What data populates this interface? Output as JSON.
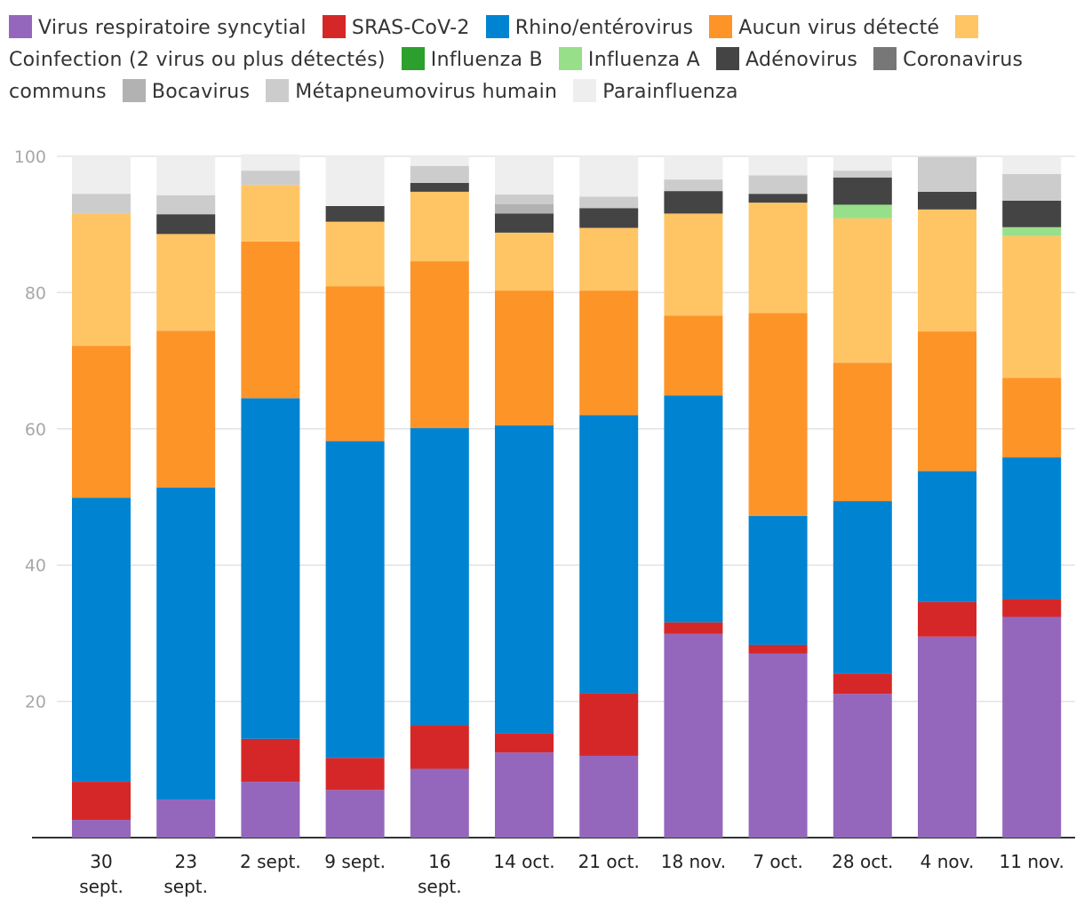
{
  "chart_data": {
    "type": "bar",
    "stacked": true,
    "title": "",
    "xlabel": "",
    "ylabel": "",
    "ylim": [
      0,
      100
    ],
    "yticks": [
      20,
      40,
      60,
      80,
      100
    ],
    "grid": true,
    "legend_position": "top",
    "categories": [
      "30 sept.",
      "23 sept.",
      "2 sept.",
      "9 sept.",
      "16 sept.",
      "14 oct.",
      "21 oct.",
      "18 nov.",
      "7 oct.",
      "28 oct.",
      "4 nov.",
      "11 nov."
    ],
    "series": [
      {
        "name": "Virus respiratoire syncytial",
        "color": "#9467bd",
        "values": [
          2.6,
          5.6,
          8.2,
          7.0,
          10.1,
          12.5,
          12.0,
          29.9,
          27.0,
          21.1,
          29.5,
          32.4
        ]
      },
      {
        "name": "SRAS-CoV-2",
        "color": "#d62728",
        "values": [
          5.6,
          0,
          6.3,
          4.7,
          6.4,
          2.8,
          9.2,
          1.7,
          1.3,
          3.0,
          5.1,
          2.6
        ]
      },
      {
        "name": "Rhino/entérovirus",
        "color": "#0084d1",
        "values": [
          41.7,
          45.8,
          50.0,
          46.5,
          43.6,
          45.2,
          40.8,
          33.3,
          18.9,
          25.3,
          19.2,
          20.8
        ]
      },
      {
        "name": "Aucun virus détecté",
        "color": "#fd9428",
        "values": [
          22.3,
          23.0,
          23.0,
          22.7,
          24.5,
          19.8,
          18.3,
          11.7,
          29.8,
          20.3,
          20.5,
          11.7
        ]
      },
      {
        "name": "Coinfection (2 virus ou plus détectés)",
        "color": "#ffc565",
        "values": [
          19.4,
          14.2,
          8.3,
          9.5,
          10.2,
          8.5,
          9.2,
          15.0,
          16.2,
          21.2,
          17.9,
          20.8
        ]
      },
      {
        "name": "Influenza B",
        "color": "#2ca02c",
        "values": [
          0,
          0,
          0,
          0,
          0,
          0,
          0,
          0,
          0,
          0,
          0,
          0
        ]
      },
      {
        "name": "Influenza A",
        "color": "#98df8a",
        "values": [
          0,
          0,
          0,
          0,
          0,
          0,
          0,
          0,
          0,
          2.0,
          0,
          1.3
        ]
      },
      {
        "name": "Adénovirus",
        "color": "#444444",
        "values": [
          0,
          2.9,
          0,
          2.3,
          1.3,
          2.8,
          2.9,
          3.3,
          1.3,
          4.0,
          2.6,
          3.9
        ]
      },
      {
        "name": "Coronavirus communs",
        "color": "#777777",
        "values": [
          0,
          0,
          0,
          0,
          0,
          0,
          0,
          0,
          0,
          0,
          0,
          0
        ]
      },
      {
        "name": "Bocavirus",
        "color": "#b2b2b2",
        "values": [
          0,
          0,
          0,
          0,
          0,
          1.4,
          0,
          0,
          0,
          0,
          0,
          0
        ]
      },
      {
        "name": "Métapneumovirus humain",
        "color": "#cccccc",
        "values": [
          2.9,
          2.8,
          2.1,
          0,
          2.5,
          1.4,
          1.7,
          1.7,
          2.7,
          1.0,
          5.1,
          3.9
        ]
      },
      {
        "name": "Parainfluenza",
        "color": "#eeeeee",
        "values": [
          5.5,
          5.7,
          2.4,
          7.3,
          1.4,
          5.6,
          5.9,
          3.4,
          2.8,
          2.1,
          0,
          2.6
        ]
      }
    ]
  }
}
